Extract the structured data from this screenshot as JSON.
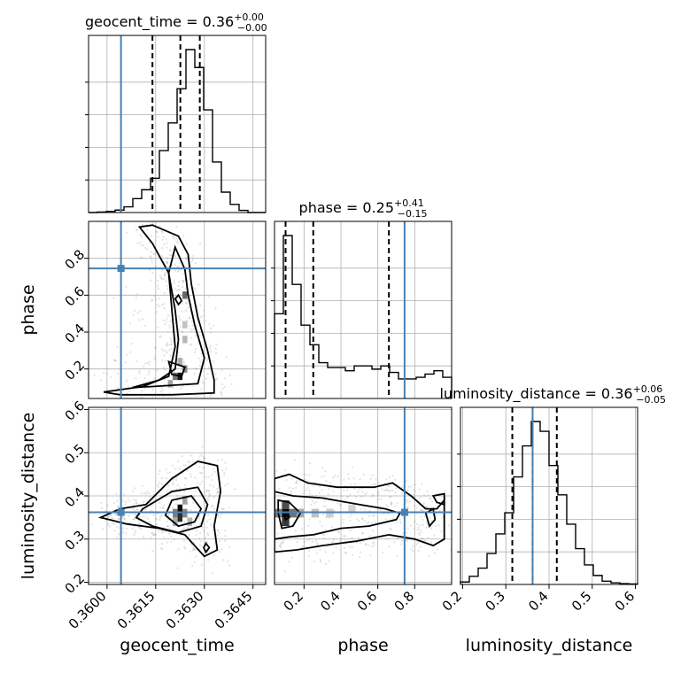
{
  "chart_data": {
    "type": "corner",
    "parameters": [
      {
        "key": "geocent_time",
        "label": "geocent_time",
        "range": [
          0.35943,
          0.36489
        ],
        "ticks": [
          0.36,
          0.3615,
          0.363,
          0.3645
        ],
        "tick_labels": [
          "0.3600",
          "0.3615",
          "0.3630",
          "0.3645"
        ],
        "truth": 0.36043,
        "quantiles": [
          0.3614,
          0.36226,
          0.36286
        ]
      },
      {
        "key": "phase",
        "label": "phase",
        "range": [
          0.04,
          1.0
        ],
        "ticks": [
          0.2,
          0.4,
          0.6,
          0.8
        ],
        "tick_labels": [
          "0.2",
          "0.4",
          "0.6",
          "0.8"
        ],
        "truth": 0.745,
        "quantiles": [
          0.1,
          0.25,
          0.66
        ]
      },
      {
        "key": "luminosity_distance",
        "label": "luminosity_distance",
        "range": [
          0.195,
          0.605
        ],
        "ticks": [
          0.2,
          0.3,
          0.4,
          0.5,
          0.6
        ],
        "tick_labels": [
          "0.2",
          "0.3",
          "0.4",
          "0.5",
          "0.6"
        ],
        "truth": 0.362,
        "quantiles": [
          0.315,
          0.362,
          0.418
        ]
      }
    ],
    "titles": [
      {
        "text": "geocent_time = 0.36",
        "sup": "+0.00",
        "sub": "−0.00"
      },
      {
        "text": "phase = 0.25",
        "sup": "+0.41",
        "sub": "−0.15"
      },
      {
        "text": "luminosity_distance = 0.36",
        "sup": "+0.06",
        "sub": "−0.05"
      }
    ],
    "histograms": [
      {
        "param": "geocent_time",
        "counts": [
          0.0,
          0.003,
          0.007,
          0.015,
          0.035,
          0.085,
          0.14,
          0.21,
          0.38,
          0.55,
          0.76,
          1.0,
          0.89,
          0.63,
          0.31,
          0.125,
          0.05,
          0.013,
          0.0,
          0.0
        ]
      },
      {
        "param": "phase",
        "counts": [
          0.52,
          1.0,
          0.7,
          0.45,
          0.33,
          0.22,
          0.19,
          0.19,
          0.17,
          0.2,
          0.2,
          0.18,
          0.2,
          0.16,
          0.12,
          0.12,
          0.13,
          0.15,
          0.17,
          0.13
        ]
      },
      {
        "param": "luminosity_distance",
        "counts": [
          0.015,
          0.05,
          0.1,
          0.19,
          0.31,
          0.44,
          0.66,
          0.85,
          1.0,
          0.94,
          0.73,
          0.55,
          0.37,
          0.22,
          0.12,
          0.055,
          0.02,
          0.01,
          0.005,
          0.003
        ]
      }
    ],
    "pairs": [
      {
        "x": "geocent_time",
        "y": "phase",
        "contours": [
          [
            [
              0.3614,
              0.98
            ],
            [
              0.3622,
              0.92
            ],
            [
              0.3625,
              0.82
            ],
            [
              0.3626,
              0.66
            ],
            [
              0.3628,
              0.48
            ],
            [
              0.3631,
              0.3
            ],
            [
              0.3633,
              0.14
            ],
            [
              0.3633,
              0.07
            ],
            [
              0.362,
              0.06
            ],
            [
              0.3604,
              0.06
            ],
            [
              0.3599,
              0.075
            ],
            [
              0.3611,
              0.105
            ],
            [
              0.3619,
              0.16
            ],
            [
              0.3621,
              0.32
            ],
            [
              0.362,
              0.52
            ],
            [
              0.3619,
              0.72
            ],
            [
              0.3614,
              0.88
            ],
            [
              0.361,
              0.97
            ]
          ],
          [
            [
              0.3621,
              0.86
            ],
            [
              0.3624,
              0.74
            ],
            [
              0.3625,
              0.6
            ],
            [
              0.3627,
              0.44
            ],
            [
              0.363,
              0.26
            ],
            [
              0.3628,
              0.12
            ],
            [
              0.3614,
              0.105
            ],
            [
              0.3608,
              0.1
            ],
            [
              0.3616,
              0.14
            ],
            [
              0.3621,
              0.2
            ],
            [
              0.3622,
              0.36
            ],
            [
              0.3621,
              0.52
            ],
            [
              0.3619,
              0.72
            ]
          ],
          [
            [
              0.3622,
              0.6
            ],
            [
              0.3623,
              0.57
            ],
            [
              0.3622,
              0.55
            ],
            [
              0.3621,
              0.58
            ]
          ],
          [
            [
              0.3619,
              0.24
            ],
            [
              0.3624,
              0.21
            ],
            [
              0.3623,
              0.16
            ],
            [
              0.362,
              0.17
            ]
          ]
        ],
        "density_cells": [
          {
            "x": 0.36225,
            "y": 0.16,
            "dx": 0.00015,
            "dy": 0.04,
            "v": 0.95
          },
          {
            "x": 0.3621,
            "y": 0.16,
            "dx": 0.00015,
            "dy": 0.04,
            "v": 0.55
          },
          {
            "x": 0.3624,
            "y": 0.2,
            "dx": 0.00015,
            "dy": 0.04,
            "v": 0.45
          },
          {
            "x": 0.36225,
            "y": 0.24,
            "dx": 0.00015,
            "dy": 0.04,
            "v": 0.3
          },
          {
            "x": 0.36195,
            "y": 0.12,
            "dx": 0.00015,
            "dy": 0.04,
            "v": 0.35
          },
          {
            "x": 0.3624,
            "y": 0.36,
            "dx": 0.00015,
            "dy": 0.04,
            "v": 0.25
          },
          {
            "x": 0.3624,
            "y": 0.44,
            "dx": 0.00015,
            "dy": 0.04,
            "v": 0.2
          },
          {
            "x": 0.3624,
            "y": 0.6,
            "dx": 0.00015,
            "dy": 0.04,
            "v": 0.6
          }
        ]
      },
      {
        "x": "geocent_time",
        "y": "luminosity_distance",
        "contours": [
          [
            [
              0.3604,
              0.37
            ],
            [
              0.3612,
              0.38
            ],
            [
              0.362,
              0.44
            ],
            [
              0.3628,
              0.48
            ],
            [
              0.3634,
              0.47
            ],
            [
              0.3635,
              0.41
            ],
            [
              0.3633,
              0.33
            ],
            [
              0.3634,
              0.275
            ],
            [
              0.363,
              0.26
            ],
            [
              0.3624,
              0.31
            ],
            [
              0.3616,
              0.325
            ],
            [
              0.3606,
              0.335
            ],
            [
              0.3598,
              0.35
            ]
          ],
          [
            [
              0.3611,
              0.37
            ],
            [
              0.362,
              0.41
            ],
            [
              0.3628,
              0.42
            ],
            [
              0.3631,
              0.38
            ],
            [
              0.3629,
              0.33
            ],
            [
              0.3622,
              0.315
            ],
            [
              0.3614,
              0.33
            ],
            [
              0.3609,
              0.35
            ]
          ],
          [
            [
              0.362,
              0.39
            ],
            [
              0.3626,
              0.4
            ],
            [
              0.3629,
              0.37
            ],
            [
              0.3627,
              0.34
            ],
            [
              0.3622,
              0.33
            ],
            [
              0.3618,
              0.355
            ]
          ],
          [
            [
              0.36305,
              0.29
            ],
            [
              0.36315,
              0.28
            ],
            [
              0.36305,
              0.27
            ],
            [
              0.36298,
              0.28
            ]
          ]
        ],
        "density_cells": [
          {
            "x": 0.36225,
            "y": 0.37,
            "dx": 0.00015,
            "dy": 0.02,
            "v": 1.0
          },
          {
            "x": 0.36225,
            "y": 0.35,
            "dx": 0.00015,
            "dy": 0.02,
            "v": 0.85
          },
          {
            "x": 0.3621,
            "y": 0.36,
            "dx": 0.00015,
            "dy": 0.02,
            "v": 0.5
          },
          {
            "x": 0.3624,
            "y": 0.36,
            "dx": 0.00015,
            "dy": 0.02,
            "v": 0.45
          },
          {
            "x": 0.3624,
            "y": 0.39,
            "dx": 0.00015,
            "dy": 0.02,
            "v": 0.35
          },
          {
            "x": 0.3621,
            "y": 0.34,
            "dx": 0.00015,
            "dy": 0.02,
            "v": 0.3
          },
          {
            "x": 0.36255,
            "y": 0.34,
            "dx": 0.00015,
            "dy": 0.02,
            "v": 0.25
          }
        ]
      },
      {
        "x": "phase",
        "y": "luminosity_distance",
        "contours": [
          [
            [
              0.04,
              0.44
            ],
            [
              0.12,
              0.45
            ],
            [
              0.22,
              0.43
            ],
            [
              0.38,
              0.42
            ],
            [
              0.58,
              0.42
            ],
            [
              0.68,
              0.43
            ],
            [
              0.78,
              0.4
            ],
            [
              0.86,
              0.37
            ],
            [
              0.92,
              0.37
            ],
            [
              0.96,
              0.39
            ],
            [
              0.96,
              0.3
            ],
            [
              0.9,
              0.285
            ],
            [
              0.8,
              0.3
            ],
            [
              0.66,
              0.31
            ],
            [
              0.48,
              0.295
            ],
            [
              0.3,
              0.285
            ],
            [
              0.16,
              0.275
            ],
            [
              0.04,
              0.27
            ]
          ],
          [
            [
              0.04,
              0.41
            ],
            [
              0.14,
              0.4
            ],
            [
              0.3,
              0.395
            ],
            [
              0.5,
              0.38
            ],
            [
              0.64,
              0.37
            ],
            [
              0.72,
              0.36
            ],
            [
              0.7,
              0.345
            ],
            [
              0.55,
              0.33
            ],
            [
              0.4,
              0.325
            ],
            [
              0.25,
              0.31
            ],
            [
              0.12,
              0.305
            ],
            [
              0.04,
              0.3
            ]
          ],
          [
            [
              0.06,
              0.39
            ],
            [
              0.12,
              0.385
            ],
            [
              0.18,
              0.36
            ],
            [
              0.14,
              0.33
            ],
            [
              0.08,
              0.325
            ],
            [
              0.06,
              0.36
            ]
          ],
          [
            [
              0.09,
              0.36
            ],
            [
              0.11,
              0.365
            ],
            [
              0.12,
              0.35
            ],
            [
              0.1,
              0.345
            ]
          ],
          [
            [
              0.86,
              0.36
            ],
            [
              0.9,
              0.37
            ],
            [
              0.91,
              0.345
            ],
            [
              0.88,
              0.33
            ]
          ],
          [
            [
              0.9,
              0.4
            ],
            [
              0.96,
              0.405
            ],
            [
              0.96,
              0.38
            ],
            [
              0.92,
              0.385
            ]
          ]
        ],
        "density_cells": [
          {
            "x": 0.1,
            "y": 0.36,
            "dx": 0.04,
            "dy": 0.02,
            "v": 1.0
          },
          {
            "x": 0.1,
            "y": 0.34,
            "dx": 0.04,
            "dy": 0.02,
            "v": 0.8
          },
          {
            "x": 0.1,
            "y": 0.38,
            "dx": 0.04,
            "dy": 0.02,
            "v": 0.7
          },
          {
            "x": 0.14,
            "y": 0.36,
            "dx": 0.04,
            "dy": 0.02,
            "v": 0.55
          },
          {
            "x": 0.06,
            "y": 0.36,
            "dx": 0.04,
            "dy": 0.02,
            "v": 0.5
          },
          {
            "x": 0.18,
            "y": 0.36,
            "dx": 0.04,
            "dy": 0.02,
            "v": 0.3
          },
          {
            "x": 0.26,
            "y": 0.36,
            "dx": 0.04,
            "dy": 0.02,
            "v": 0.2
          },
          {
            "x": 0.34,
            "y": 0.36,
            "dx": 0.04,
            "dy": 0.02,
            "v": 0.15
          },
          {
            "x": 0.46,
            "y": 0.37,
            "dx": 0.04,
            "dy": 0.02,
            "v": 0.12
          }
        ]
      }
    ]
  }
}
